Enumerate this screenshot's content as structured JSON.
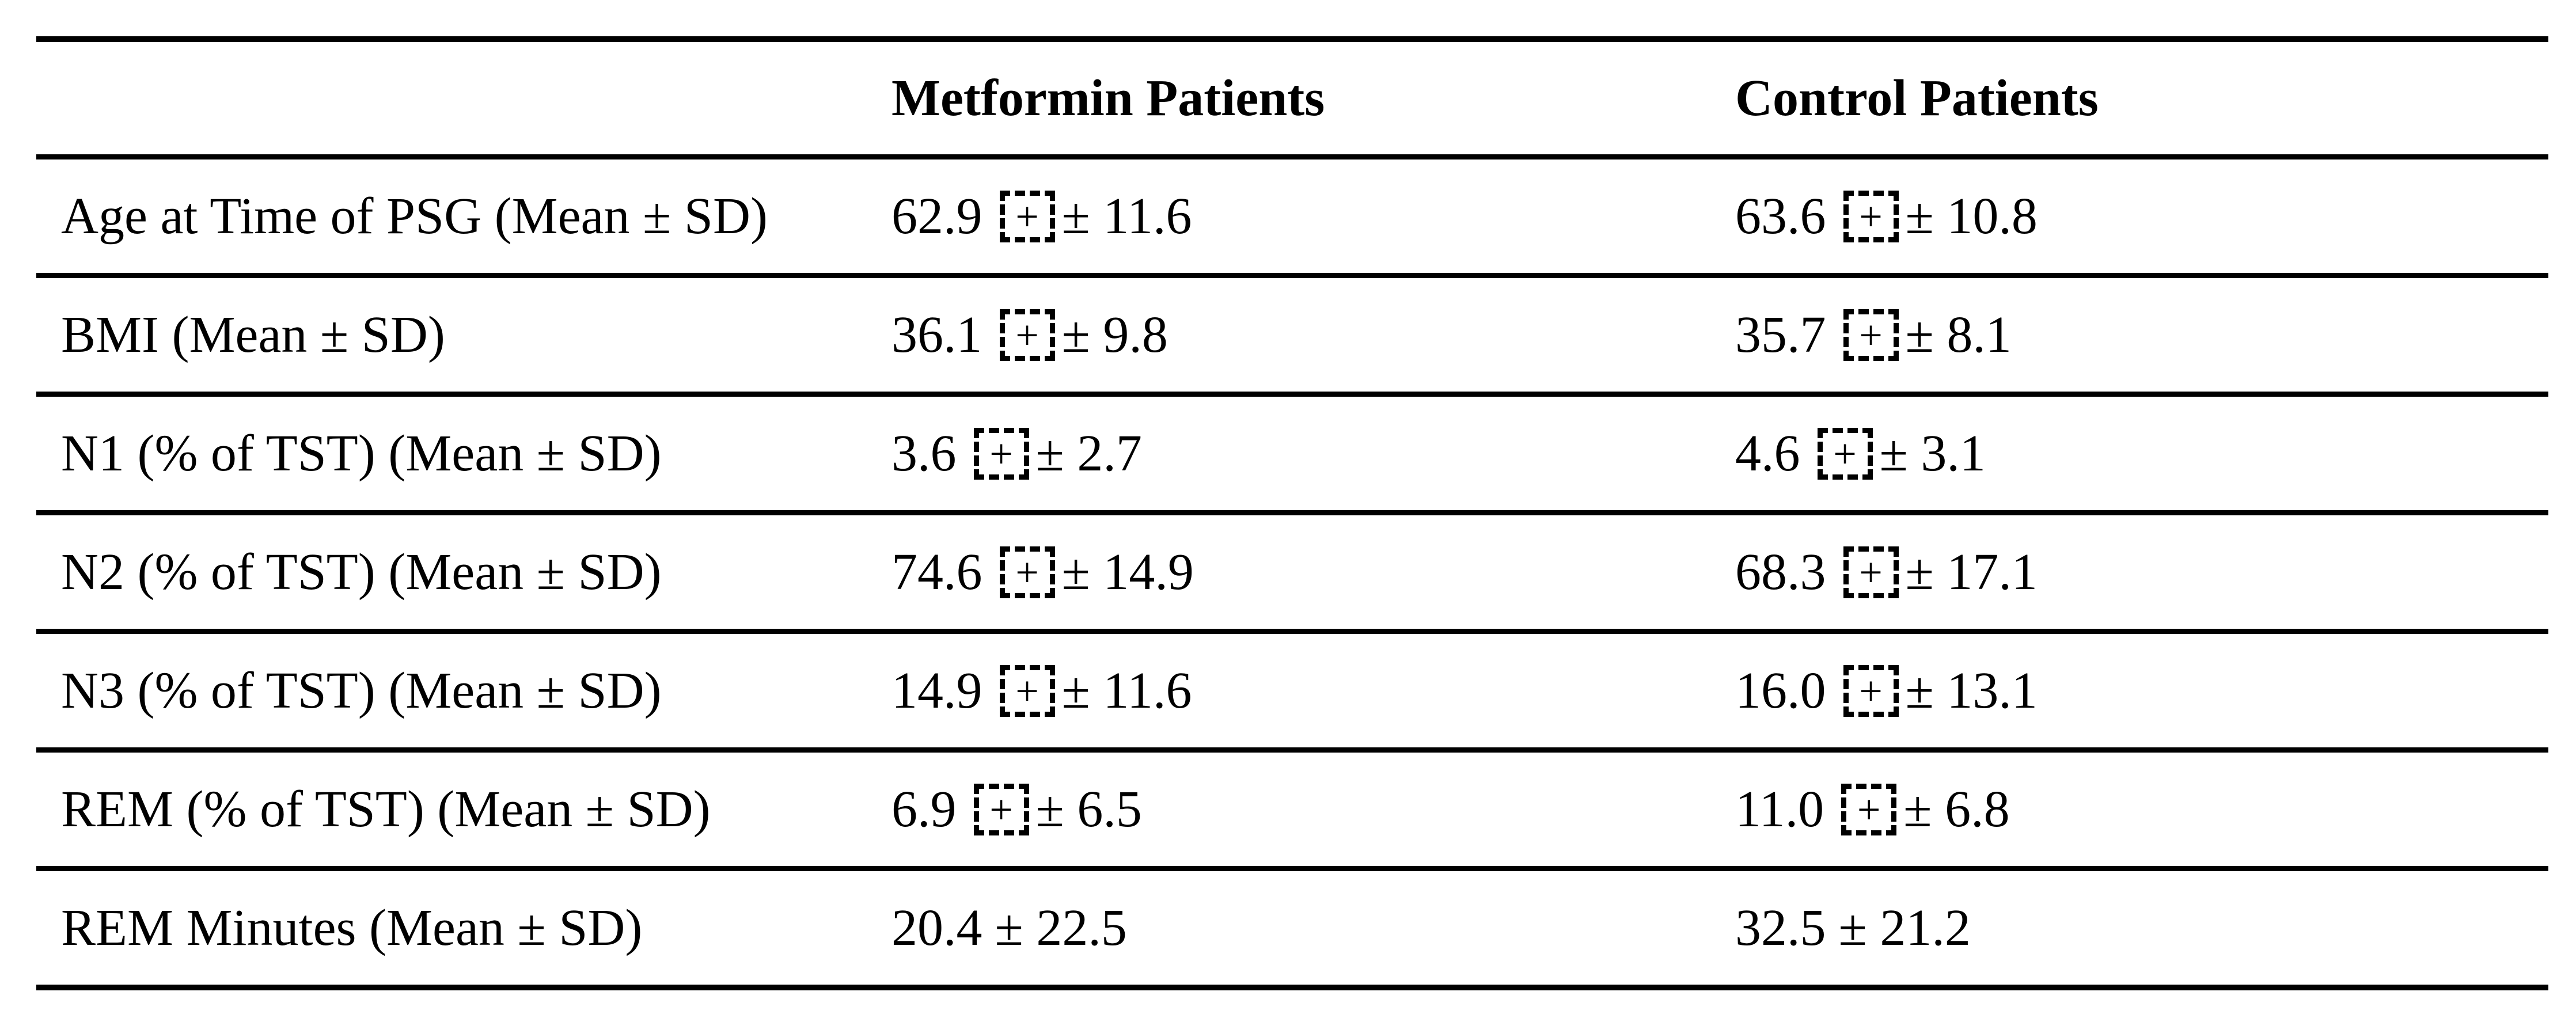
{
  "table": {
    "box_glyph": "+",
    "columns": [
      "",
      "Metformin Patients",
      "Control Patients"
    ],
    "rows": [
      {
        "label": "Age at Time of PSG (Mean ± SD)",
        "metformin": {
          "mean": "62.9",
          "sd": "± 11.6"
        },
        "control": {
          "mean": "63.6",
          "sd": "± 10.8"
        }
      },
      {
        "label": "BMI (Mean ± SD)",
        "metformin": {
          "mean": "36.1",
          "sd": "± 9.8"
        },
        "control": {
          "mean": "35.7",
          "sd": "± 8.1"
        }
      },
      {
        "label": "N1 (% of TST) (Mean ± SD)",
        "metformin": {
          "mean": "3.6",
          "sd": "± 2.7"
        },
        "control": {
          "mean": "4.6",
          "sd": "± 3.1"
        }
      },
      {
        "label": "N2 (% of TST) (Mean ± SD)",
        "metformin": {
          "mean": "74.6",
          "sd": "± 14.9"
        },
        "control": {
          "mean": "68.3",
          "sd": "± 17.1"
        }
      },
      {
        "label": "N3 (% of TST) (Mean ± SD)",
        "metformin": {
          "mean": "14.9",
          "sd": "± 11.6"
        },
        "control": {
          "mean": "16.0",
          "sd": "± 13.1"
        }
      },
      {
        "label": "REM (% of TST) (Mean ± SD)",
        "metformin": {
          "mean": "6.9",
          "sd": "± 6.5"
        },
        "control": {
          "mean": "11.0",
          "sd": "± 6.8"
        }
      },
      {
        "label": "REM Minutes (Mean ± SD)",
        "metformin": {
          "mean": "20.4",
          "sd": "± 22.5"
        },
        "control": {
          "mean": "32.5",
          "sd": "± 21.2"
        }
      }
    ]
  }
}
